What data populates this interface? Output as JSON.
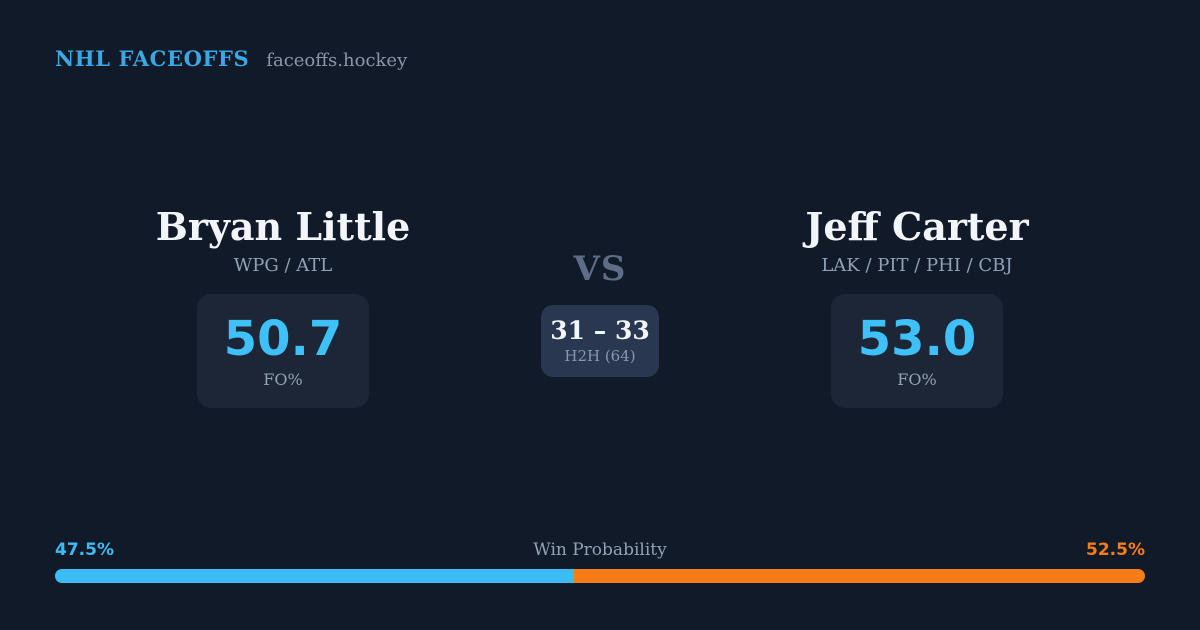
{
  "header": {
    "brand": "NHL FACEOFFS",
    "site": "faceoffs.hockey"
  },
  "matchup": {
    "player_left": {
      "name": "Bryan Little",
      "teams": "WPG / ATL",
      "stat_value": "50.7",
      "stat_label": "FO%"
    },
    "vs_label": "VS",
    "h2h": {
      "score": "31 – 33",
      "label": "H2H (64)"
    },
    "player_right": {
      "name": "Jeff Carter",
      "teams": "LAK / PIT / PHI / CBJ",
      "stat_value": "53.0",
      "stat_label": "FO%"
    }
  },
  "win_probability": {
    "title": "Win Probability",
    "left_pct": "47.5%",
    "right_pct": "52.5%",
    "left_color": "#3cbcf5",
    "right_color": "#f97d16"
  },
  "colors": {
    "background": "#111a29",
    "brand_blue": "#3ba7e4",
    "accent_blue": "#3ec1f8",
    "stat_box_bg": "#1d2636",
    "h2h_box_bg": "#2a3750"
  }
}
